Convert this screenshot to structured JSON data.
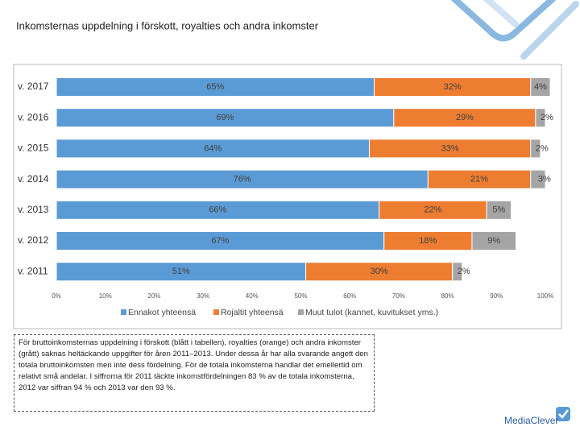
{
  "chart_data": {
    "type": "bar",
    "title": "Inkomsternas uppdelning i förskott, royalties och andra inkomster",
    "categories": [
      "v. 2017",
      "v. 2016",
      "v. 2015",
      "v. 2014",
      "v. 2013",
      "v. 2012",
      "v. 2011"
    ],
    "series": [
      {
        "name": "Ennakot yhteensä",
        "color": "#5b9bd5",
        "values": [
          65,
          69,
          64,
          76,
          66,
          67,
          51
        ],
        "value_labels": [
          "65%",
          "69%",
          "64%",
          "76%",
          "66%",
          "67%",
          "51%"
        ]
      },
      {
        "name": "Rojaltit yhteensä",
        "color": "#ed7d31",
        "values": [
          32,
          29,
          33,
          21,
          22,
          18,
          30
        ],
        "value_labels": [
          "32%",
          "29%",
          "33%",
          "21%",
          "22%",
          "18%",
          "30%"
        ]
      },
      {
        "name": "Muut tulot (kannet, kuvitukset yms.)",
        "color": "#a5a5a5",
        "values": [
          4,
          2,
          2,
          3,
          5,
          9,
          2
        ],
        "value_labels": [
          "4%",
          "2%",
          "2%",
          "3%",
          "5%",
          "9%",
          "2%"
        ]
      }
    ],
    "xlim": [
      0,
      100
    ],
    "xticks": [
      {
        "value": 0,
        "label": "0%"
      },
      {
        "value": 10,
        "label": "10%"
      },
      {
        "value": 20,
        "label": "20%"
      },
      {
        "value": 30,
        "label": "30%"
      },
      {
        "value": 40,
        "label": "40%"
      },
      {
        "value": 50,
        "label": "50%"
      },
      {
        "value": 60,
        "label": "60%"
      },
      {
        "value": 70,
        "label": "70%"
      },
      {
        "value": 80,
        "label": "80%"
      },
      {
        "value": 90,
        "label": "90%"
      },
      {
        "value": 100,
        "label": "100%"
      }
    ]
  },
  "text_box": "För bruttoinkomsternas uppdelning i förskott (blått i tabellen), royalties (orange) och andra inkomster (grått) saknas heltäckande uppgifter för åren 2011–2013. Under dessa år har alla svarande angett den totala bruttoinkomsten men inte dess fördelning. För de totala inkomsterna handlar det emellertid om relativt små andelar. I siffrorna för 2011 täckte inkomstfördelningen 83 % av de totala inkomsterna, 2012 var siffran 94 % och 2013 var den 93 %.",
  "logo": "MediaClever"
}
